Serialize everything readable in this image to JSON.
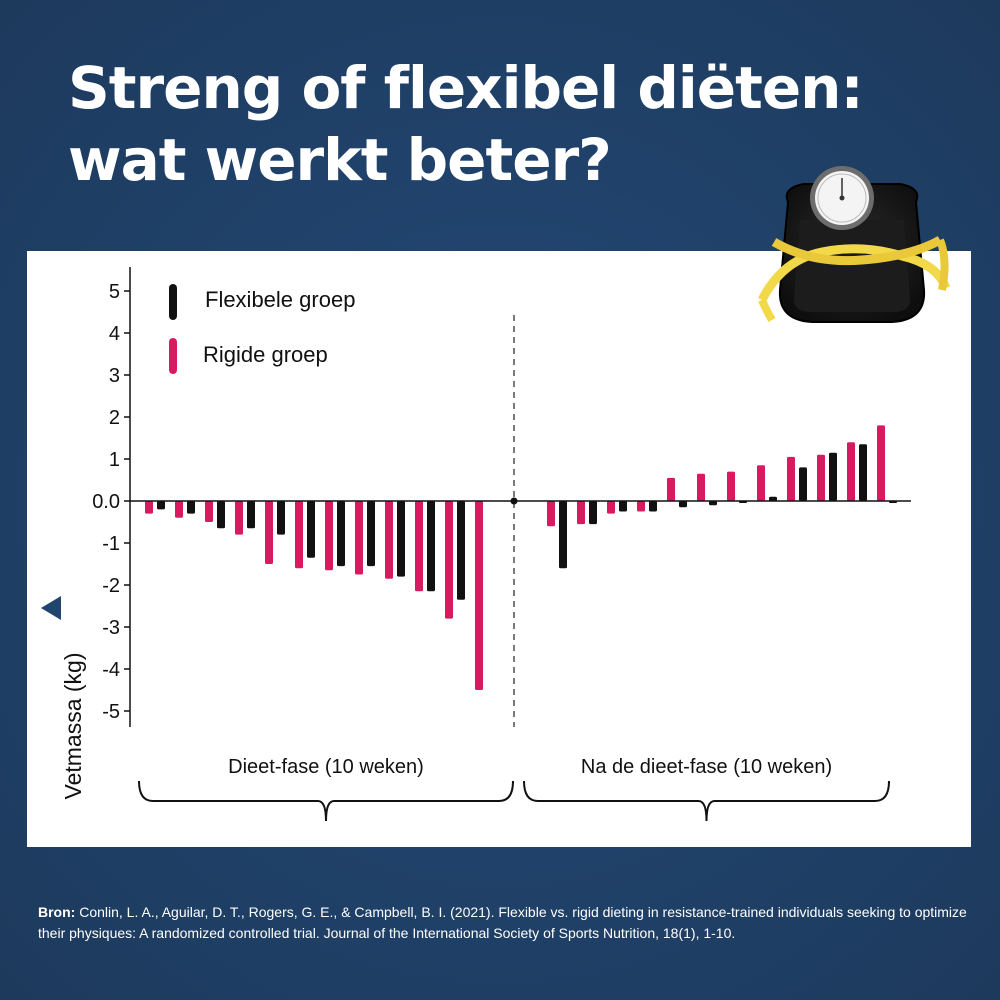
{
  "title": {
    "line1": "Streng of flexibel diëten:",
    "line2": "wat werkt beter?"
  },
  "chart_data": {
    "type": "bar",
    "ylabel": "Vetmassa (kg)",
    "ylim": [
      -5,
      5
    ],
    "yticks": [
      "5",
      "4",
      "3",
      "2",
      "1",
      "0.0",
      "-1",
      "-2",
      "-3",
      "-4",
      "-5"
    ],
    "legend_position": "top-left",
    "series": [
      {
        "name": "Flexibele groep",
        "color": "#111111"
      },
      {
        "name": "Rigide groep",
        "color": "#d81b60"
      }
    ],
    "phases": [
      {
        "label": "Dieet-fase (10 weken)",
        "pairs": [
          {
            "rigid": -0.3,
            "flexible": -0.2
          },
          {
            "rigid": -0.4,
            "flexible": -0.3
          },
          {
            "rigid": -0.5,
            "flexible": -0.65
          },
          {
            "rigid": -0.8,
            "flexible": -0.65
          },
          {
            "rigid": -1.5,
            "flexible": -0.8
          },
          {
            "rigid": -1.6,
            "flexible": -1.35
          },
          {
            "rigid": -1.65,
            "flexible": -1.55
          },
          {
            "rigid": -1.75,
            "flexible": -1.55
          },
          {
            "rigid": -1.85,
            "flexible": -1.8
          },
          {
            "rigid": -2.15,
            "flexible": -2.15
          },
          {
            "rigid": -2.8,
            "flexible": -2.35
          },
          {
            "rigid": -4.5,
            "flexible": null
          }
        ]
      },
      {
        "label": "Na de dieet-fase (10 weken)",
        "pairs": [
          {
            "rigid": -0.6,
            "flexible": -1.6
          },
          {
            "rigid": -0.55,
            "flexible": -0.55
          },
          {
            "rigid": -0.3,
            "flexible": -0.25
          },
          {
            "rigid": -0.25,
            "flexible": -0.25
          },
          {
            "rigid": 0.55,
            "flexible": -0.15
          },
          {
            "rigid": 0.65,
            "flexible": -0.1
          },
          {
            "rigid": 0.7,
            "flexible": 0.0
          },
          {
            "rigid": 0.85,
            "flexible": 0.1
          },
          {
            "rigid": 1.05,
            "flexible": 0.8
          },
          {
            "rigid": 1.1,
            "flexible": 1.15
          },
          {
            "rigid": 1.4,
            "flexible": 1.35
          },
          {
            "rigid": 1.8,
            "flexible": 0.0
          }
        ]
      }
    ]
  },
  "source": {
    "prefix": "Bron:",
    "text": " Conlin, L. A., Aguilar, D. T., Rogers, G. E., & Campbell, B. I. (2021). Flexible vs. rigid dieting in resistance-trained individuals seeking to optimize their physiques: A randomized controlled trial. Journal of the International Society of Sports Nutrition, 18(1), 1-10."
  },
  "colors": {
    "background": "#20426b",
    "flexible": "#111111",
    "rigid": "#d81b60",
    "tape": "#f2d94a"
  },
  "icons": [
    "delta-triangle-icon",
    "bathroom-scale-icon"
  ]
}
